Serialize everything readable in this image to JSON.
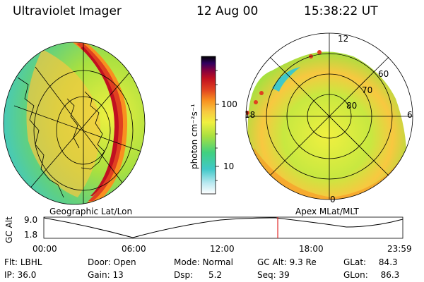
{
  "header": {
    "instrument": "Ultraviolet Imager",
    "date": "12 Aug 00",
    "time": "15:38:22 UT"
  },
  "colorbar": {
    "unit_label": "photon cm⁻²s⁻¹",
    "ticks": [
      "100",
      "10"
    ],
    "scale": "log",
    "colors": [
      "#ffffff",
      "#b8e8f0",
      "#40c8c8",
      "#40d080",
      "#a8e040",
      "#f0f040",
      "#f8c840",
      "#f89020",
      "#e04020",
      "#c01020",
      "#800040",
      "#300060",
      "#000000"
    ]
  },
  "geo_panel": {
    "label": "Geographic Lat/Lon"
  },
  "mlt_panel": {
    "label": "Apex MLat/MLT",
    "time_labels": [
      "12",
      "18",
      "6",
      "0"
    ],
    "lat_labels": [
      "60",
      "70",
      "80"
    ]
  },
  "altitude_plot": {
    "ylabel": "GC Alt",
    "yticks": [
      "9.0",
      "1.8"
    ],
    "xticks": [
      "00:00",
      "06:00",
      "12:00",
      "18:00",
      "23:59"
    ],
    "current_time_marker": 15.64,
    "marker_color": "#e02020"
  },
  "info": {
    "flt_label": "Flt:",
    "flt_value": "LBHL",
    "ip_label": "IP:",
    "ip_value": "36.0",
    "door_label": "Door:",
    "door_value": "Open",
    "gain_label": "Gain:",
    "gain_value": "13",
    "mode_label": "Mode:",
    "mode_value": "Normal",
    "dsp_label": "Dsp:",
    "dsp_value": "5.2",
    "gcalt_label": "GC Alt:",
    "gcalt_value": "9.3 Re",
    "seq_label": "Seq:",
    "seq_value": "39",
    "glat_label": "GLat:",
    "glat_value": "84.3",
    "glon_label": "GLon:",
    "glon_value": "86.3"
  }
}
